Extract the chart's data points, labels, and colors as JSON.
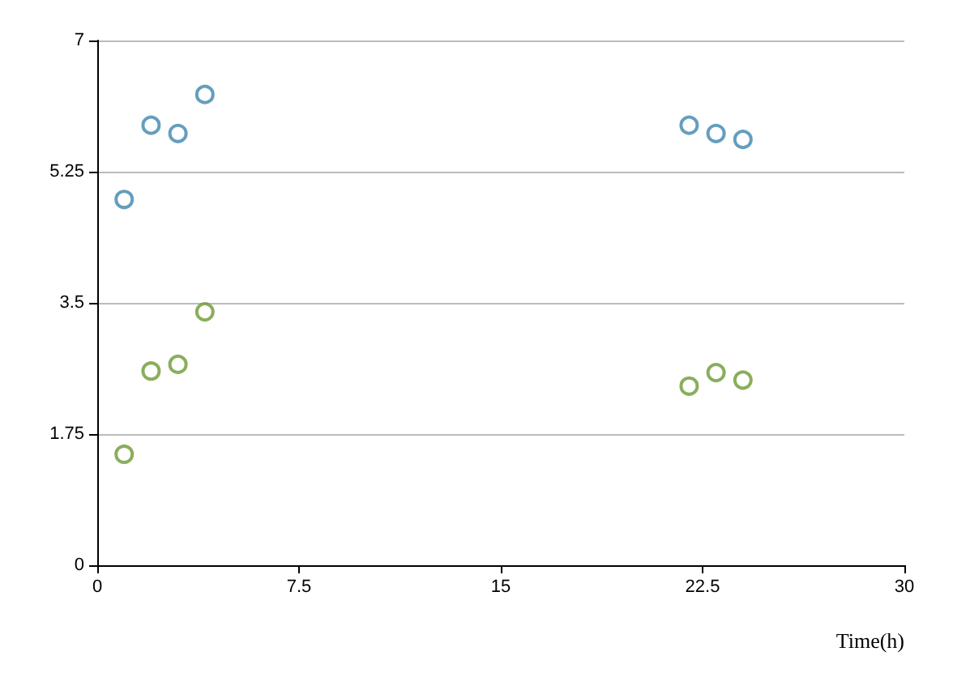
{
  "chart_data": {
    "type": "scatter",
    "xlabel": "Time(h)",
    "x": [
      1,
      2,
      3,
      4,
      22,
      23,
      24
    ],
    "series": [
      {
        "color": "#3e86ad",
        "values": [
          4.88,
          5.87,
          5.76,
          6.28,
          5.87,
          5.76,
          5.68
        ]
      },
      {
        "color": "#6b9a35",
        "values": [
          1.48,
          2.59,
          2.68,
          3.38,
          2.39,
          2.57,
          2.47
        ]
      }
    ],
    "xlim": [
      0,
      30
    ],
    "xticks": [
      0,
      7.5,
      15,
      22.5,
      30
    ],
    "ylim": [
      0,
      7
    ],
    "yticks": [
      0,
      1.75,
      3.5,
      5.25,
      7
    ],
    "grid": "y",
    "marker": "circle"
  }
}
